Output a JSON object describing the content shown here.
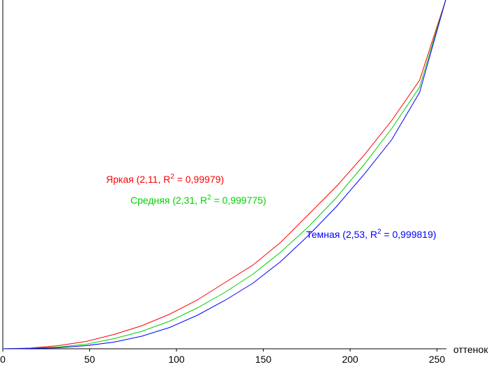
{
  "chart_data": {
    "type": "line",
    "title": "",
    "xlabel": "оттенок",
    "ylabel": "",
    "xlim": [
      0,
      255
    ],
    "ylim": [
      0,
      1
    ],
    "grid": false,
    "x_ticks": [
      0,
      50,
      100,
      150,
      200,
      250
    ],
    "series": [
      {
        "name": "Яркая",
        "label_parts": [
          "Яркая (2,11, R",
          "2",
          " = 0,99979)"
        ],
        "color": "#ff0000",
        "x": [
          0,
          16,
          32,
          48,
          64,
          80,
          96,
          112,
          128,
          144,
          160,
          176,
          192,
          208,
          224,
          240,
          255
        ],
        "y": [
          0,
          0.002,
          0.009,
          0.021,
          0.041,
          0.066,
          0.099,
          0.14,
          0.19,
          0.24,
          0.305,
          0.385,
          0.465,
          0.555,
          0.655,
          0.77,
          1
        ]
      },
      {
        "name": "Средняя",
        "label_parts": [
          "Средняя (2,31, R",
          "2",
          " = 0,999775)"
        ],
        "color": "#00d000",
        "x": [
          0,
          16,
          32,
          48,
          64,
          80,
          96,
          112,
          128,
          144,
          160,
          176,
          192,
          208,
          224,
          240,
          255
        ],
        "y": [
          0,
          0.001,
          0.005,
          0.013,
          0.029,
          0.05,
          0.079,
          0.117,
          0.162,
          0.214,
          0.277,
          0.35,
          0.433,
          0.528,
          0.632,
          0.75,
          1
        ]
      },
      {
        "name": "Темная",
        "label_parts": [
          "Темная (2,53, R",
          "2",
          " = 0,999819)"
        ],
        "color": "#0000ff",
        "x": [
          0,
          16,
          32,
          48,
          64,
          80,
          96,
          112,
          128,
          144,
          160,
          176,
          192,
          208,
          224,
          240,
          255
        ],
        "y": [
          0,
          0.001,
          0.003,
          0.009,
          0.019,
          0.036,
          0.061,
          0.096,
          0.139,
          0.188,
          0.25,
          0.325,
          0.407,
          0.5,
          0.6,
          0.735,
          1
        ]
      }
    ]
  }
}
